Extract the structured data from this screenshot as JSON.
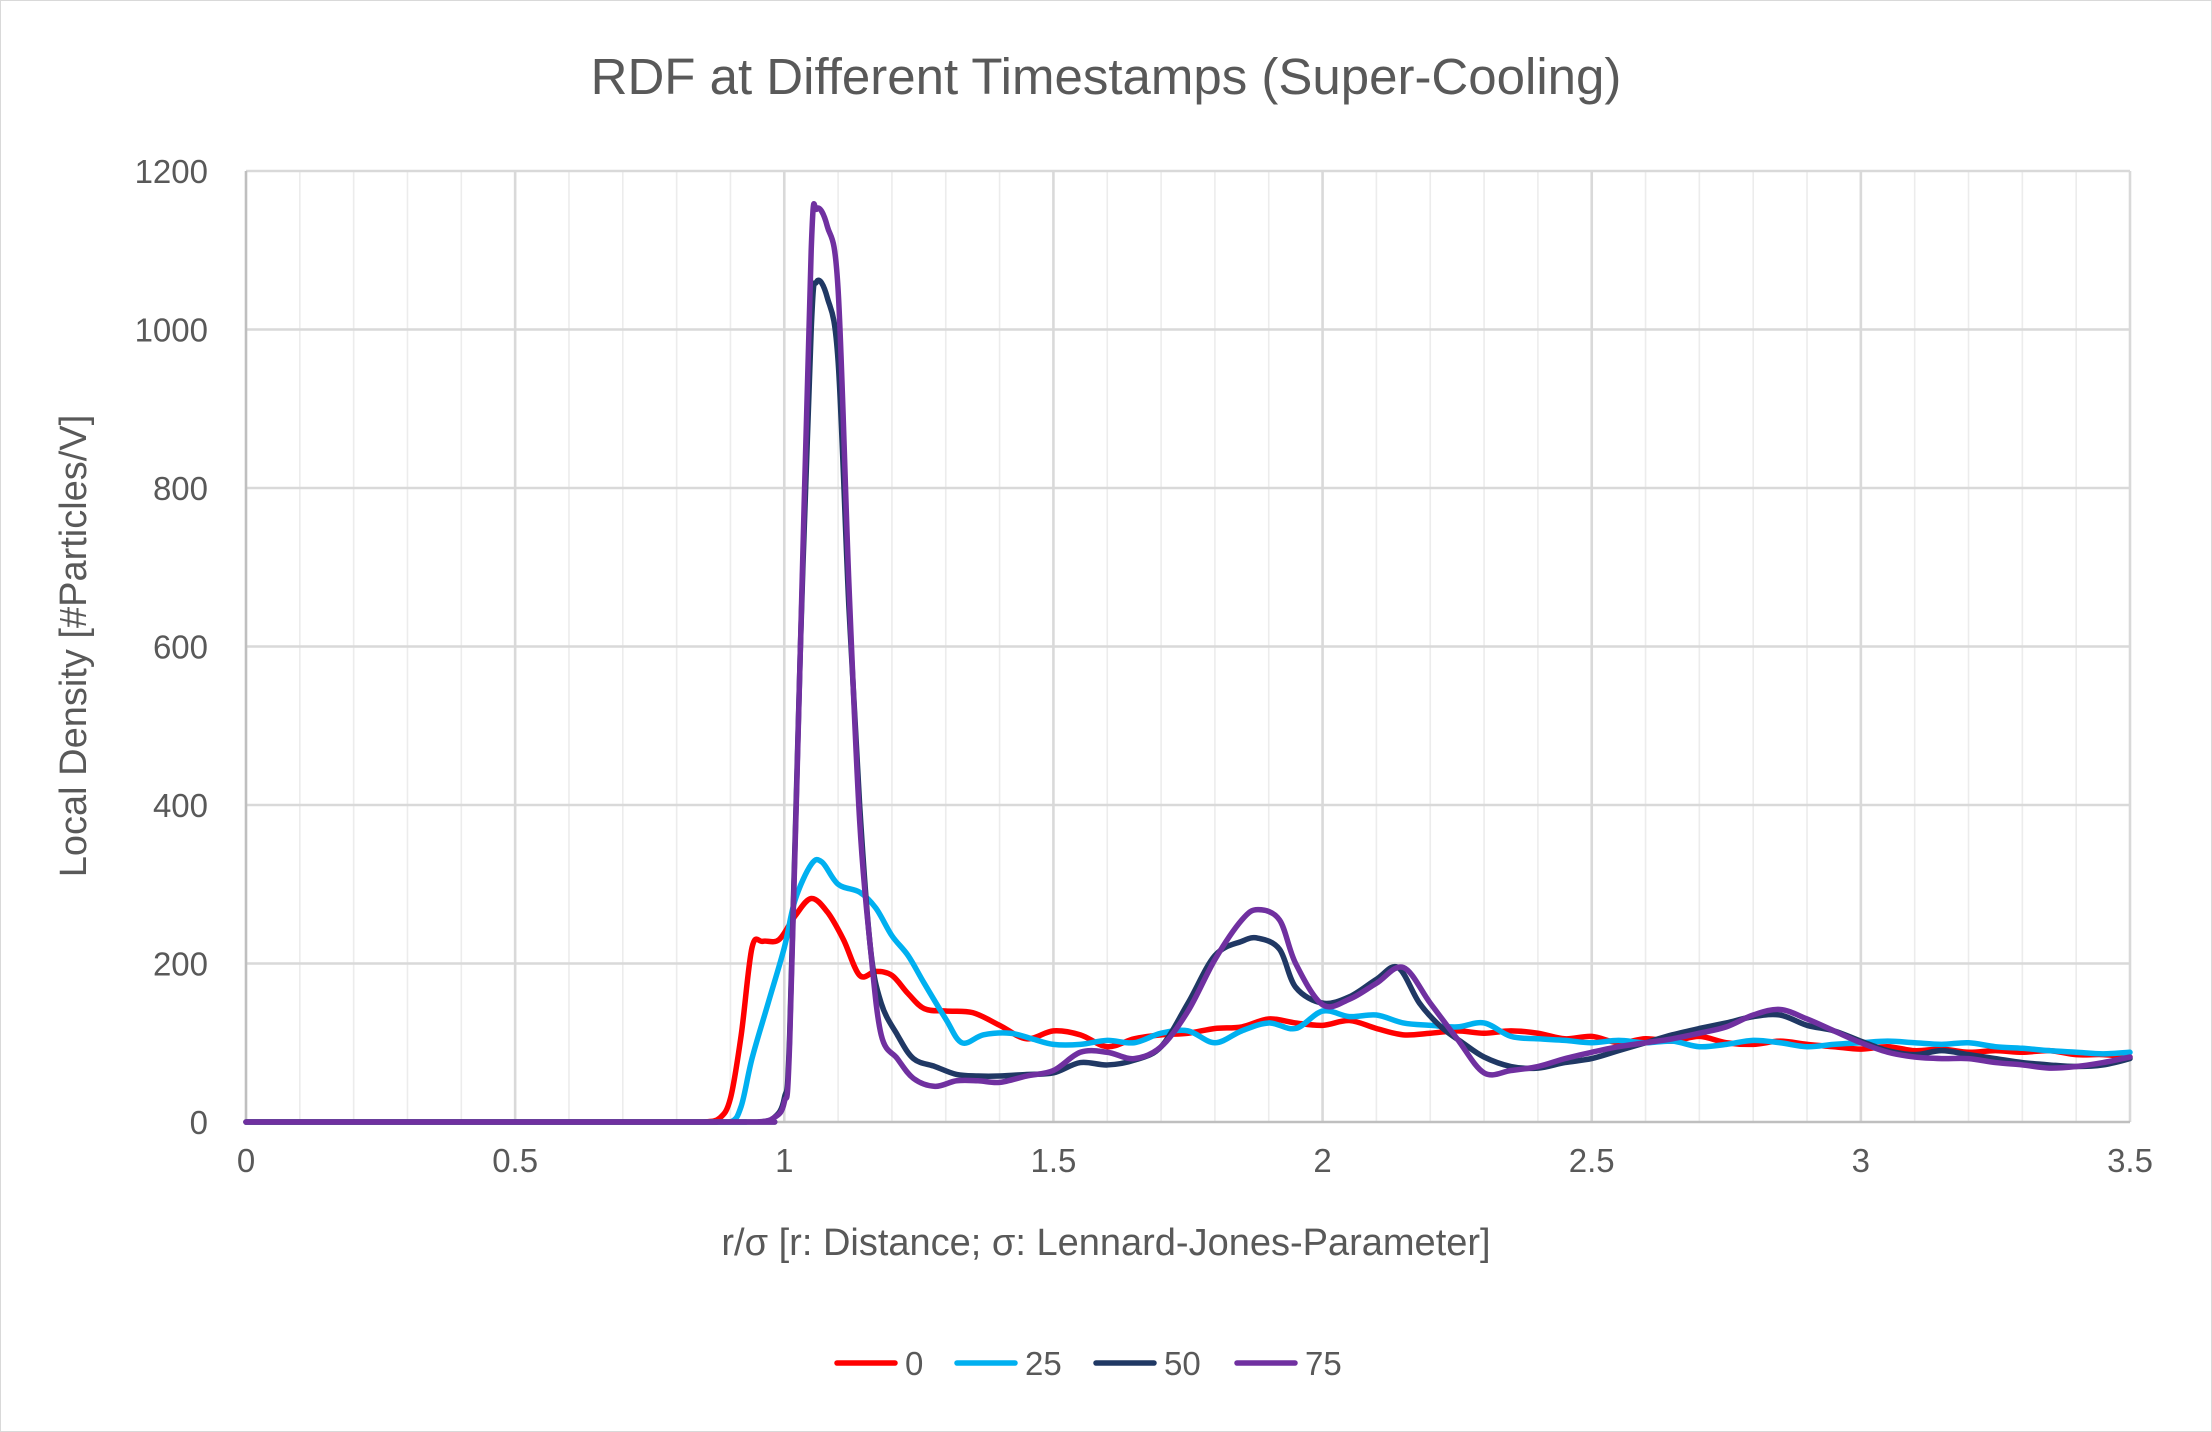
{
  "chart_data": {
    "type": "line",
    "title": "RDF at Different Timestamps (Super-Cooling)",
    "xlabel": "r/σ [r: Distance; σ: Lennard-Jones-Parameter]",
    "ylabel": "Local Density [#Particles/V]",
    "xlim": [
      0,
      3.5
    ],
    "ylim": [
      0,
      1200
    ],
    "x_ticks": [
      0,
      0.5,
      1,
      1.5,
      2,
      2.5,
      3,
      3.5
    ],
    "x_tick_labels": [
      "0",
      "0.5",
      "1",
      "1.5",
      "2",
      "2.5",
      "3",
      "3.5"
    ],
    "x_minor_step": 0.1,
    "y_ticks": [
      0,
      200,
      400,
      600,
      800,
      1000,
      1200
    ],
    "y_tick_labels": [
      "0",
      "200",
      "400",
      "600",
      "800",
      "1000",
      "1200"
    ],
    "grid": true,
    "legend_position": "bottom",
    "series": [
      {
        "name": "0",
        "color": "#ff0000",
        "points": [
          [
            0,
            0
          ],
          [
            0.8,
            0
          ],
          [
            0.85,
            0
          ],
          [
            0.88,
            5
          ],
          [
            0.9,
            30
          ],
          [
            0.92,
            110
          ],
          [
            0.94,
            220
          ],
          [
            0.96,
            228
          ],
          [
            0.99,
            230
          ],
          [
            1.02,
            260
          ],
          [
            1.05,
            282
          ],
          [
            1.08,
            265
          ],
          [
            1.11,
            230
          ],
          [
            1.14,
            185
          ],
          [
            1.17,
            190
          ],
          [
            1.2,
            185
          ],
          [
            1.23,
            162
          ],
          [
            1.26,
            143
          ],
          [
            1.3,
            140
          ],
          [
            1.35,
            138
          ],
          [
            1.4,
            122
          ],
          [
            1.45,
            105
          ],
          [
            1.5,
            115
          ],
          [
            1.55,
            110
          ],
          [
            1.6,
            95
          ],
          [
            1.65,
            105
          ],
          [
            1.7,
            110
          ],
          [
            1.75,
            112
          ],
          [
            1.8,
            118
          ],
          [
            1.85,
            120
          ],
          [
            1.9,
            130
          ],
          [
            1.95,
            125
          ],
          [
            2.0,
            122
          ],
          [
            2.05,
            128
          ],
          [
            2.1,
            118
          ],
          [
            2.15,
            110
          ],
          [
            2.2,
            112
          ],
          [
            2.25,
            115
          ],
          [
            2.3,
            112
          ],
          [
            2.35,
            115
          ],
          [
            2.4,
            112
          ],
          [
            2.45,
            105
          ],
          [
            2.5,
            108
          ],
          [
            2.55,
            100
          ],
          [
            2.6,
            105
          ],
          [
            2.65,
            102
          ],
          [
            2.7,
            108
          ],
          [
            2.75,
            100
          ],
          [
            2.8,
            98
          ],
          [
            2.85,
            102
          ],
          [
            2.9,
            98
          ],
          [
            2.95,
            95
          ],
          [
            3.0,
            92
          ],
          [
            3.05,
            95
          ],
          [
            3.1,
            90
          ],
          [
            3.15,
            92
          ],
          [
            3.2,
            88
          ],
          [
            3.25,
            90
          ],
          [
            3.3,
            88
          ],
          [
            3.35,
            90
          ],
          [
            3.4,
            85
          ],
          [
            3.45,
            85
          ],
          [
            3.5,
            82
          ]
        ]
      },
      {
        "name": "25",
        "color": "#00b0f0",
        "points": [
          [
            0,
            0
          ],
          [
            0.85,
            0
          ],
          [
            0.9,
            0
          ],
          [
            0.92,
            20
          ],
          [
            0.94,
            80
          ],
          [
            0.97,
            150
          ],
          [
            1.0,
            220
          ],
          [
            1.02,
            280
          ],
          [
            1.05,
            325
          ],
          [
            1.07,
            328
          ],
          [
            1.1,
            300
          ],
          [
            1.14,
            290
          ],
          [
            1.17,
            270
          ],
          [
            1.2,
            235
          ],
          [
            1.23,
            210
          ],
          [
            1.26,
            175
          ],
          [
            1.3,
            130
          ],
          [
            1.33,
            100
          ],
          [
            1.37,
            110
          ],
          [
            1.42,
            112
          ],
          [
            1.46,
            105
          ],
          [
            1.5,
            98
          ],
          [
            1.55,
            98
          ],
          [
            1.6,
            103
          ],
          [
            1.65,
            100
          ],
          [
            1.7,
            112
          ],
          [
            1.75,
            115
          ],
          [
            1.8,
            100
          ],
          [
            1.85,
            115
          ],
          [
            1.9,
            125
          ],
          [
            1.95,
            118
          ],
          [
            2.0,
            140
          ],
          [
            2.05,
            133
          ],
          [
            2.1,
            135
          ],
          [
            2.15,
            125
          ],
          [
            2.2,
            122
          ],
          [
            2.25,
            120
          ],
          [
            2.3,
            125
          ],
          [
            2.35,
            108
          ],
          [
            2.4,
            105
          ],
          [
            2.45,
            103
          ],
          [
            2.5,
            100
          ],
          [
            2.55,
            103
          ],
          [
            2.6,
            100
          ],
          [
            2.65,
            102
          ],
          [
            2.7,
            95
          ],
          [
            2.75,
            98
          ],
          [
            2.8,
            103
          ],
          [
            2.85,
            100
          ],
          [
            2.9,
            95
          ],
          [
            2.95,
            98
          ],
          [
            3.0,
            100
          ],
          [
            3.05,
            102
          ],
          [
            3.1,
            100
          ],
          [
            3.15,
            98
          ],
          [
            3.2,
            100
          ],
          [
            3.25,
            95
          ],
          [
            3.3,
            93
          ],
          [
            3.35,
            90
          ],
          [
            3.4,
            88
          ],
          [
            3.45,
            86
          ],
          [
            3.5,
            88
          ]
        ]
      },
      {
        "name": "50",
        "color": "#203864",
        "points": [
          [
            0,
            0
          ],
          [
            0.9,
            0
          ],
          [
            0.95,
            0
          ],
          [
            0.98,
            5
          ],
          [
            1.0,
            30
          ],
          [
            1.01,
            110
          ],
          [
            1.03,
            600
          ],
          [
            1.05,
            1000
          ],
          [
            1.06,
            1060
          ],
          [
            1.08,
            1040
          ],
          [
            1.1,
            960
          ],
          [
            1.12,
            650
          ],
          [
            1.14,
            400
          ],
          [
            1.16,
            220
          ],
          [
            1.18,
            150
          ],
          [
            1.21,
            110
          ],
          [
            1.24,
            80
          ],
          [
            1.28,
            70
          ],
          [
            1.32,
            60
          ],
          [
            1.36,
            58
          ],
          [
            1.4,
            58
          ],
          [
            1.45,
            60
          ],
          [
            1.5,
            62
          ],
          [
            1.55,
            75
          ],
          [
            1.6,
            72
          ],
          [
            1.65,
            78
          ],
          [
            1.7,
            95
          ],
          [
            1.75,
            150
          ],
          [
            1.8,
            210
          ],
          [
            1.85,
            228
          ],
          [
            1.88,
            232
          ],
          [
            1.92,
            218
          ],
          [
            1.95,
            170
          ],
          [
            2.0,
            150
          ],
          [
            2.05,
            158
          ],
          [
            2.1,
            180
          ],
          [
            2.14,
            195
          ],
          [
            2.18,
            150
          ],
          [
            2.22,
            120
          ],
          [
            2.26,
            100
          ],
          [
            2.3,
            82
          ],
          [
            2.35,
            70
          ],
          [
            2.4,
            68
          ],
          [
            2.45,
            75
          ],
          [
            2.5,
            80
          ],
          [
            2.55,
            90
          ],
          [
            2.6,
            100
          ],
          [
            2.65,
            110
          ],
          [
            2.7,
            118
          ],
          [
            2.75,
            125
          ],
          [
            2.8,
            133
          ],
          [
            2.85,
            135
          ],
          [
            2.9,
            122
          ],
          [
            2.95,
            115
          ],
          [
            3.0,
            102
          ],
          [
            3.05,
            90
          ],
          [
            3.1,
            85
          ],
          [
            3.15,
            90
          ],
          [
            3.2,
            85
          ],
          [
            3.25,
            80
          ],
          [
            3.3,
            75
          ],
          [
            3.35,
            72
          ],
          [
            3.4,
            70
          ],
          [
            3.45,
            72
          ],
          [
            3.5,
            80
          ]
        ]
      },
      {
        "name": "75",
        "color": "#7030a0",
        "points": [
          [
            0,
            0
          ],
          [
            0.9,
            0
          ],
          [
            0.95,
            0
          ],
          [
            0.98,
            5
          ],
          [
            1.0,
            25
          ],
          [
            1.01,
            100
          ],
          [
            1.03,
            600
          ],
          [
            1.05,
            1100
          ],
          [
            1.06,
            1152
          ],
          [
            1.08,
            1130
          ],
          [
            1.1,
            1050
          ],
          [
            1.12,
            680
          ],
          [
            1.14,
            380
          ],
          [
            1.16,
            220
          ],
          [
            1.18,
            110
          ],
          [
            1.21,
            80
          ],
          [
            1.24,
            55
          ],
          [
            1.28,
            45
          ],
          [
            1.32,
            52
          ],
          [
            1.36,
            52
          ],
          [
            1.4,
            50
          ],
          [
            1.45,
            58
          ],
          [
            1.5,
            65
          ],
          [
            1.55,
            88
          ],
          [
            1.6,
            88
          ],
          [
            1.65,
            80
          ],
          [
            1.7,
            95
          ],
          [
            1.75,
            140
          ],
          [
            1.8,
            205
          ],
          [
            1.85,
            255
          ],
          [
            1.88,
            268
          ],
          [
            1.92,
            255
          ],
          [
            1.95,
            200
          ],
          [
            2.0,
            148
          ],
          [
            2.05,
            155
          ],
          [
            2.1,
            175
          ],
          [
            2.15,
            195
          ],
          [
            2.2,
            150
          ],
          [
            2.25,
            105
          ],
          [
            2.3,
            62
          ],
          [
            2.35,
            65
          ],
          [
            2.4,
            70
          ],
          [
            2.45,
            80
          ],
          [
            2.5,
            88
          ],
          [
            2.55,
            95
          ],
          [
            2.6,
            100
          ],
          [
            2.65,
            105
          ],
          [
            2.7,
            112
          ],
          [
            2.75,
            120
          ],
          [
            2.8,
            135
          ],
          [
            2.85,
            142
          ],
          [
            2.9,
            130
          ],
          [
            2.95,
            115
          ],
          [
            3.0,
            100
          ],
          [
            3.05,
            88
          ],
          [
            3.1,
            82
          ],
          [
            3.15,
            80
          ],
          [
            3.2,
            80
          ],
          [
            3.25,
            75
          ],
          [
            3.3,
            72
          ],
          [
            3.35,
            68
          ],
          [
            3.4,
            70
          ],
          [
            3.45,
            75
          ],
          [
            3.5,
            82
          ]
        ]
      }
    ]
  }
}
